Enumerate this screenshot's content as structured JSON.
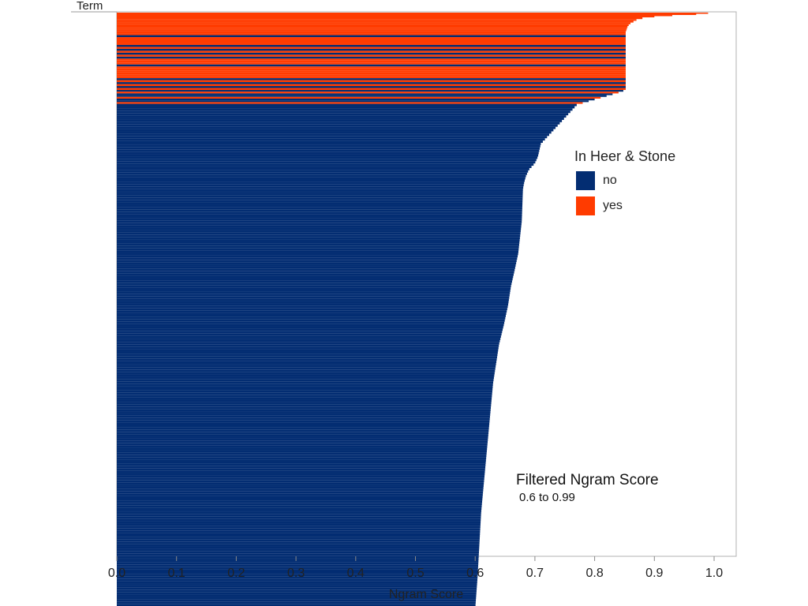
{
  "chart_data": {
    "type": "bar",
    "orientation": "horizontal",
    "ylabel": "Term",
    "xlabel": "Ngram Score",
    "xlim": [
      0,
      1.04
    ],
    "xticks": [
      "0.0",
      "0.1",
      "0.2",
      "0.3",
      "0.4",
      "0.5",
      "0.6",
      "0.7",
      "0.8",
      "0.9",
      "1.0"
    ],
    "legend": {
      "title": "In Heer & Stone",
      "placement": "right",
      "items": [
        {
          "label": "no",
          "color": "#032d72"
        },
        {
          "label": "yes",
          "color": "#ff3b00"
        }
      ]
    },
    "annotation": {
      "title": "Filtered Ngram Score",
      "range": "0.6 to 0.99"
    },
    "colors": {
      "no": "#032d72",
      "yes": "#ff3b00"
    },
    "stack_order": [
      "yes_top",
      "yes_band",
      "mixed_band",
      "no_curve"
    ],
    "segments": {
      "yes_top_scores": [
        0.99,
        0.97,
        0.93,
        0.9,
        0.88,
        0.87,
        0.865,
        0.86,
        0.857,
        0.855,
        0.854,
        0.853
      ],
      "mixed_band": {
        "score": 0.852,
        "pattern": [
          "yes",
          "yes",
          "no",
          "yes",
          "yes",
          "yes",
          "yes",
          "no",
          "yes",
          "no",
          "yes",
          "no",
          "yes",
          "no",
          "yes",
          "yes",
          "yes",
          "no",
          "yes",
          "yes",
          "yes",
          "yes",
          "yes",
          "yes",
          "no",
          "yes",
          "no",
          "yes",
          "no",
          "yes"
        ]
      },
      "tail_scores": [
        0.848,
        0.84,
        0.83,
        0.82,
        0.81,
        0.8,
        0.79,
        0.78
      ],
      "no_curve": [
        [
          0.78,
          0.77
        ],
        [
          0.76,
          0.75
        ],
        [
          0.74,
          0.73
        ],
        [
          0.72,
          0.71
        ],
        [
          0.7,
          0.705
        ],
        [
          0.69,
          0.7
        ],
        [
          0.68,
          0.69
        ],
        [
          0.67,
          0.685
        ],
        [
          0.66,
          0.682
        ],
        [
          0.65,
          0.68
        ],
        [
          0.6,
          0.678
        ],
        [
          0.55,
          0.672
        ],
        [
          0.52,
          0.665
        ],
        [
          0.5,
          0.66
        ],
        [
          0.47,
          0.655
        ],
        [
          0.44,
          0.648
        ],
        [
          0.41,
          0.64
        ],
        [
          0.38,
          0.635
        ],
        [
          0.35,
          0.63
        ],
        [
          0.3,
          0.625
        ],
        [
          0.25,
          0.62
        ],
        [
          0.2,
          0.615
        ],
        [
          0.15,
          0.61
        ],
        [
          0.1,
          0.607
        ],
        [
          0.05,
          0.604
        ],
        [
          0.0,
          0.6
        ]
      ]
    }
  }
}
